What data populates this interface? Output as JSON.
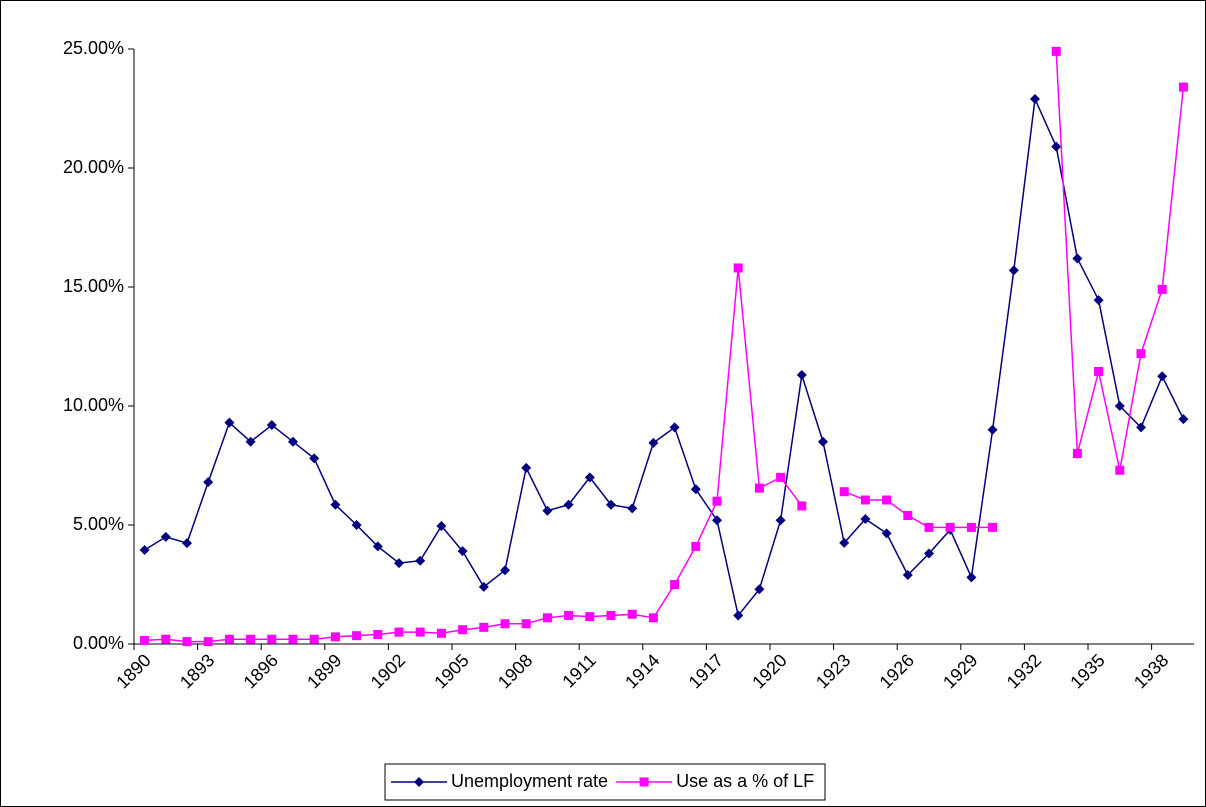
{
  "chart_data": {
    "type": "line",
    "categories": [
      "1890",
      null,
      null,
      "1893",
      null,
      null,
      "1896",
      null,
      null,
      "1899",
      null,
      null,
      "1902",
      null,
      null,
      "1905",
      null,
      null,
      "1908",
      null,
      null,
      "1911",
      null,
      null,
      "1914",
      null,
      null,
      "1917",
      null,
      null,
      "1920",
      null,
      null,
      "1923",
      null,
      null,
      "1926",
      null,
      null,
      "1929",
      null,
      null,
      "1932",
      null,
      null,
      "1935",
      null,
      null,
      "1938",
      null
    ],
    "series": [
      {
        "name": "Unemployment rate",
        "color": "#000080",
        "marker": "diamond",
        "values": [
          3.95,
          4.5,
          4.24,
          6.8,
          9.3,
          8.5,
          9.2,
          8.5,
          7.8,
          5.85,
          5.0,
          4.1,
          3.4,
          3.5,
          4.96,
          3.9,
          2.4,
          3.1,
          7.4,
          5.6,
          5.85,
          7.0,
          5.85,
          5.7,
          8.45,
          9.1,
          6.5,
          5.2,
          1.2,
          2.3,
          5.2,
          11.3,
          8.5,
          4.25,
          5.25,
          4.65,
          2.9,
          3.8,
          4.8,
          2.8,
          9.0,
          15.7,
          22.9,
          20.9,
          16.2,
          14.45,
          10.0,
          9.1,
          11.25,
          9.45
        ]
      },
      {
        "name": "Use as a % of LF",
        "color": "#FF00FF",
        "marker": "square",
        "values": [
          0.15,
          0.2,
          0.1,
          0.1,
          0.2,
          0.2,
          0.2,
          0.2,
          0.2,
          0.3,
          0.35,
          0.4,
          0.5,
          0.5,
          0.45,
          0.6,
          0.7,
          0.85,
          0.85,
          1.1,
          1.2,
          1.15,
          1.2,
          1.25,
          1.1,
          2.5,
          4.1,
          6.0,
          15.8,
          6.55,
          7.0,
          5.8,
          null,
          6.4,
          6.05,
          6.05,
          5.4,
          4.9,
          4.9,
          4.9,
          4.9,
          null,
          null,
          24.9,
          8.0,
          11.45,
          7.3,
          12.2,
          14.9,
          23.4
        ]
      }
    ],
    "ylim": [
      0,
      25
    ],
    "yticks": [
      {
        "value": 0,
        "label": "0.00%"
      },
      {
        "value": 5,
        "label": "5.00%"
      },
      {
        "value": 10,
        "label": "10.00%"
      },
      {
        "value": 15,
        "label": "15.00%"
      },
      {
        "value": 20,
        "label": "20.00%"
      },
      {
        "value": 25,
        "label": "25.00%"
      }
    ],
    "grid": false,
    "legend": "bottom"
  }
}
